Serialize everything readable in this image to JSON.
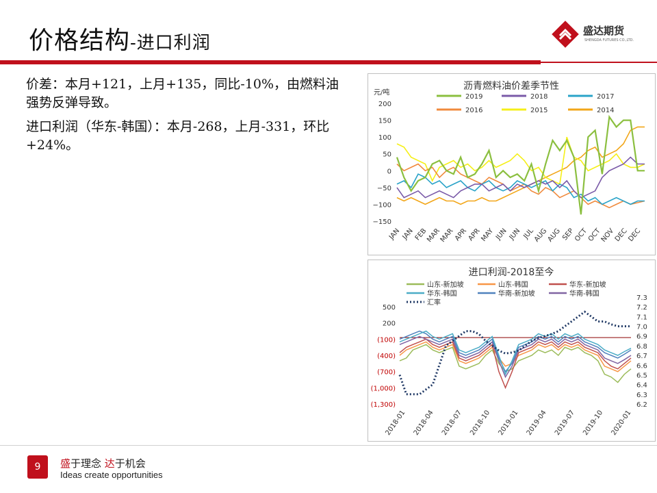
{
  "header": {
    "title": "价格结构",
    "subtitle": "-进口利润",
    "logo_name": "盛达期货",
    "logo_en": "SHENGDA FUTURES CO.,LTD."
  },
  "commentary": {
    "p1": "价差：本月+121，上月+135，同比-10%，由燃料油强势反弹导致。",
    "p2": "进口利润（华东-韩国）：本月-268，上月-331，环比+24%。"
  },
  "footer": {
    "page_number": "9",
    "slogan_prefix_1": "盛",
    "slogan_mid_1": "于理念 ",
    "slogan_prefix_2": "达",
    "slogan_mid_2": "于机会",
    "slogan_en": "Ideas create opportunities"
  },
  "chart_data": [
    {
      "type": "line",
      "title": "沥青燃料油价差季节性",
      "ylabel": "元/吨",
      "ylim": [
        -150,
        200
      ],
      "yticks": [
        "200",
        "150",
        "100",
        "50",
        "0",
        "−50",
        "−100",
        "−150"
      ],
      "x_ticks": [
        "JAN",
        "JAN",
        "FEB",
        "MAR",
        "MAR",
        "APR",
        "APR",
        "MAY",
        "JUN",
        "JUN",
        "JUL",
        "AUG",
        "AUG",
        "SEP",
        "OCT",
        "OCT",
        "NOV",
        "DEC",
        "DEC"
      ],
      "legend_position": "top",
      "series": [
        {
          "name": "2019",
          "color": "#8bbf3f",
          "values": [
            40,
            -20,
            -60,
            -30,
            -20,
            20,
            30,
            0,
            -10,
            40,
            -20,
            -10,
            20,
            60,
            -20,
            0,
            -20,
            -10,
            -30,
            20,
            -60,
            20,
            90,
            60,
            90,
            40,
            -130,
            100,
            120,
            -10,
            160,
            130,
            150,
            150,
            0,
            0
          ]
        },
        {
          "name": "2018",
          "color": "#7a5aa8",
          "values": [
            -50,
            -80,
            -70,
            -60,
            -80,
            -70,
            -60,
            -70,
            -80,
            -60,
            -50,
            -40,
            -40,
            -60,
            -50,
            -40,
            -60,
            -40,
            -50,
            -40,
            -30,
            -40,
            -30,
            -50,
            -30,
            -60,
            -80,
            -70,
            -60,
            -20,
            0,
            10,
            20,
            40,
            20,
            20
          ]
        },
        {
          "name": "2017",
          "color": "#2aa3c8",
          "values": [
            -40,
            -30,
            -50,
            -10,
            -20,
            -40,
            -30,
            -50,
            -40,
            -30,
            -50,
            -60,
            -40,
            -30,
            -50,
            -60,
            -50,
            -30,
            -40,
            -50,
            -40,
            -30,
            -60,
            -40,
            -50,
            -80,
            -70,
            -90,
            -80,
            -100,
            -90,
            -80,
            -90,
            -100,
            -90,
            -90
          ]
        },
        {
          "name": "2016",
          "color": "#f08a3c",
          "values": [
            20,
            0,
            10,
            20,
            0,
            10,
            -20,
            0,
            10,
            -10,
            -20,
            -30,
            -40,
            -20,
            -30,
            -40,
            -60,
            -50,
            -40,
            -60,
            -70,
            -50,
            -60,
            -80,
            -70,
            -60,
            -80,
            -100,
            -90,
            -100,
            -110,
            -100,
            -90,
            -100,
            -95,
            -90
          ]
        },
        {
          "name": "2015",
          "color": "#f5ef18",
          "values": [
            80,
            70,
            40,
            30,
            20,
            -30,
            10,
            20,
            30,
            10,
            20,
            0,
            10,
            30,
            10,
            20,
            30,
            50,
            30,
            0,
            10,
            -20,
            -30,
            -40,
            100,
            40,
            30,
            0,
            10,
            20,
            30,
            50,
            20,
            10,
            10,
            20
          ]
        },
        {
          "name": "2014",
          "color": "#f2a618",
          "values": [
            -80,
            -90,
            -80,
            -90,
            -100,
            -90,
            -80,
            -90,
            -90,
            -100,
            -90,
            -90,
            -80,
            -90,
            -90,
            -80,
            -70,
            -60,
            -50,
            -40,
            -30,
            -20,
            -10,
            0,
            10,
            30,
            40,
            60,
            70,
            40,
            50,
            60,
            80,
            120,
            130,
            130
          ]
        }
      ]
    },
    {
      "type": "line",
      "title": "进口利润-2018至今",
      "ylim": [
        -1300,
        500
      ],
      "yticks_left": [
        "500",
        "200",
        "(100)",
        "(400)",
        "(700)",
        "(1,000)",
        "(1,300)"
      ],
      "y2lim": [
        6.2,
        7.3
      ],
      "yticks_right": [
        "7.3",
        "7.2",
        "7.1",
        "7.0",
        "6.9",
        "6.8",
        "6.7",
        "6.6",
        "6.5",
        "6.4",
        "6.3",
        "6.2"
      ],
      "x_ticks": [
        "2018-01",
        "2018-04",
        "2018-07",
        "2018-10",
        "2019-01",
        "2019-04",
        "2019-07",
        "2019-10",
        "2020-01"
      ],
      "legend_position": "top",
      "series": [
        {
          "name": "山东-新加坡",
          "color": "#9bbb59",
          "values": [
            -500,
            -450,
            -300,
            -250,
            -200,
            -300,
            -350,
            -300,
            -250,
            -600,
            -650,
            -600,
            -550,
            -400,
            -300,
            -550,
            -700,
            -650,
            -500,
            -450,
            -400,
            -300,
            -350,
            -300,
            -400,
            -250,
            -300,
            -250,
            -350,
            -400,
            -500,
            -750,
            -800,
            -900,
            -750,
            -650
          ]
        },
        {
          "name": "山东-韩国",
          "color": "#f79646",
          "values": [
            -400,
            -300,
            -250,
            -200,
            -150,
            -250,
            -300,
            -250,
            -200,
            -500,
            -550,
            -500,
            -450,
            -350,
            -250,
            -450,
            -600,
            -550,
            -400,
            -350,
            -300,
            -200,
            -250,
            -200,
            -300,
            -200,
            -250,
            -200,
            -300,
            -350,
            -400,
            -600,
            -650,
            -700,
            -600,
            -500
          ]
        },
        {
          "name": "华东-新加坡",
          "color": "#c0504d",
          "values": [
            -350,
            -250,
            -200,
            -150,
            -100,
            -200,
            -250,
            -200,
            -150,
            -450,
            -500,
            -450,
            -400,
            -300,
            -200,
            -700,
            -1000,
            -700,
            -350,
            -300,
            -250,
            -150,
            -200,
            -150,
            -250,
            -150,
            -200,
            -150,
            -250,
            -300,
            -350,
            -500,
            -600,
            -650,
            -550,
            -450
          ]
        },
        {
          "name": "华东-韩国",
          "color": "#4bacc6",
          "values": [
            -150,
            -100,
            -50,
            0,
            50,
            -50,
            -100,
            -50,
            0,
            -300,
            -350,
            -300,
            -250,
            -150,
            -50,
            -400,
            -750,
            -500,
            -200,
            -150,
            -100,
            0,
            -50,
            0,
            -100,
            0,
            -50,
            0,
            -100,
            -150,
            -200,
            -300,
            -350,
            -400,
            -330,
            -268
          ]
        },
        {
          "name": "华南-新加坡",
          "color": "#4f81bd",
          "values": [
            -100,
            -50,
            0,
            50,
            0,
            -100,
            -150,
            -100,
            -50,
            -350,
            -400,
            -350,
            -300,
            -200,
            -100,
            -450,
            -700,
            -550,
            -250,
            -200,
            -150,
            -50,
            -100,
            -50,
            -150,
            -50,
            -100,
            -50,
            -150,
            -200,
            -250,
            -350,
            -400,
            -450,
            -380,
            -300
          ]
        },
        {
          "name": "华南-韩国",
          "color": "#8064a2",
          "values": [
            -200,
            -150,
            -100,
            -50,
            -100,
            -150,
            -200,
            -150,
            -100,
            -400,
            -450,
            -400,
            -350,
            -250,
            -150,
            -500,
            -800,
            -600,
            -300,
            -250,
            -200,
            -100,
            -150,
            -100,
            -200,
            -100,
            -150,
            -100,
            -200,
            -250,
            -300,
            -450,
            -500,
            -550,
            -480,
            -400
          ]
        },
        {
          "name": "汇率",
          "color": "#1f3864",
          "axis": "right",
          "dotted": true,
          "values": [
            6.5,
            6.3,
            6.3,
            6.3,
            6.35,
            6.4,
            6.6,
            6.8,
            6.85,
            6.9,
            6.95,
            6.95,
            6.92,
            6.85,
            6.8,
            6.75,
            6.72,
            6.73,
            6.75,
            6.8,
            6.85,
            6.88,
            6.9,
            6.92,
            6.95,
            7.0,
            7.05,
            7.1,
            7.15,
            7.1,
            7.05,
            7.05,
            7.02,
            7.0,
            7.0,
            7.0
          ]
        },
        {
          "name": "",
          "color": "#8b0000",
          "values": [
            -70,
            -70,
            -70,
            -70,
            -70,
            -70,
            -70,
            -70,
            -70,
            -70,
            -70,
            -70,
            -70,
            -70,
            -70,
            -70,
            -70,
            -70,
            -70,
            -70,
            -70,
            -70,
            -70,
            -70,
            -70,
            -70,
            -70,
            -70,
            -70,
            -70,
            -70,
            -70,
            -70,
            -70,
            -70,
            -70
          ]
        }
      ]
    }
  ]
}
